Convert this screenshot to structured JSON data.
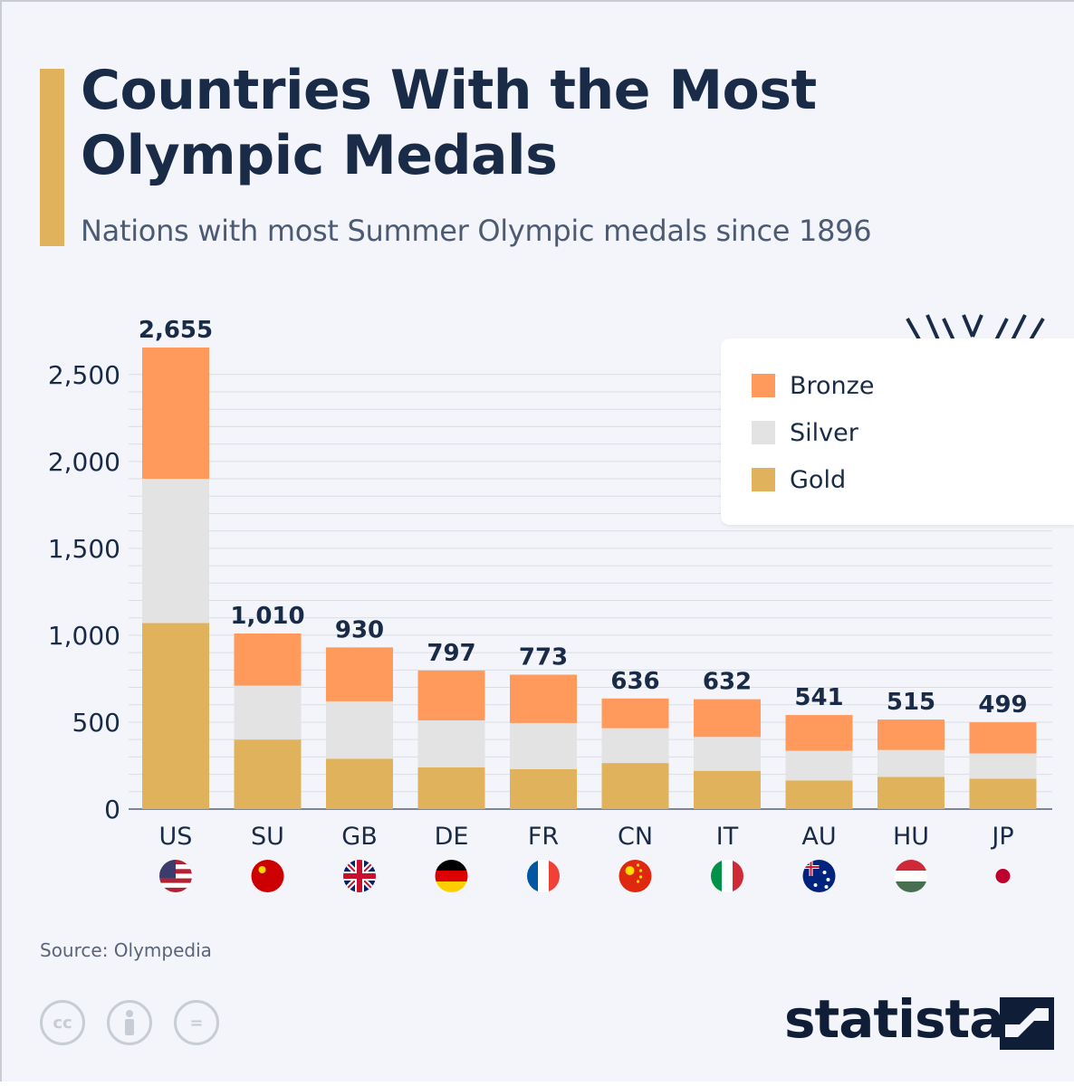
{
  "header": {
    "title": "Countries With the Most Olympic Medals",
    "subtitle": "Nations with most Summer Olympic medals since 1896"
  },
  "chart_data": {
    "type": "bar",
    "stacked": true,
    "categories": [
      "US",
      "SU",
      "GB",
      "DE",
      "FR",
      "CN",
      "IT",
      "AU",
      "HU",
      "JP"
    ],
    "totals": [
      2655,
      1010,
      930,
      797,
      773,
      636,
      632,
      541,
      515,
      499
    ],
    "total_labels": [
      "2,655",
      "1,010",
      "930",
      "797",
      "773",
      "636",
      "632",
      "541",
      "515",
      "499"
    ],
    "series": [
      {
        "name": "Gold",
        "color": "#e0b25c",
        "values": [
          1070,
          400,
          290,
          240,
          230,
          265,
          220,
          165,
          185,
          175
        ]
      },
      {
        "name": "Silver",
        "color": "#e3e3e3",
        "values": [
          830,
          310,
          330,
          270,
          265,
          200,
          195,
          170,
          155,
          145
        ]
      },
      {
        "name": "Bronze",
        "color": "#ff9a5c",
        "values": [
          755,
          300,
          310,
          287,
          278,
          171,
          217,
          206,
          175,
          179
        ]
      }
    ],
    "legend_order": [
      "Bronze",
      "Silver",
      "Gold"
    ],
    "y_ticks": [
      0,
      500,
      1000,
      1500,
      2000,
      2500
    ],
    "y_tick_labels": [
      "0",
      "500",
      "1,000",
      "1,500",
      "2,000",
      "2,500"
    ],
    "ylim": [
      0,
      2655
    ],
    "grid": true,
    "legend_position": "top-right",
    "flags": [
      "us-flag-icon",
      "soviet-union-flag-icon",
      "uk-flag-icon",
      "germany-flag-icon",
      "france-flag-icon",
      "china-flag-icon",
      "italy-flag-icon",
      "australia-flag-icon",
      "hungary-flag-icon",
      "japan-flag-icon"
    ]
  },
  "footer": {
    "source": "Source: Olympedia",
    "brand": "statista",
    "license_icons": [
      "cc-icon",
      "attribution-icon",
      "no-derivatives-icon"
    ],
    "license_glyphs": [
      "cc",
      "",
      "="
    ]
  }
}
